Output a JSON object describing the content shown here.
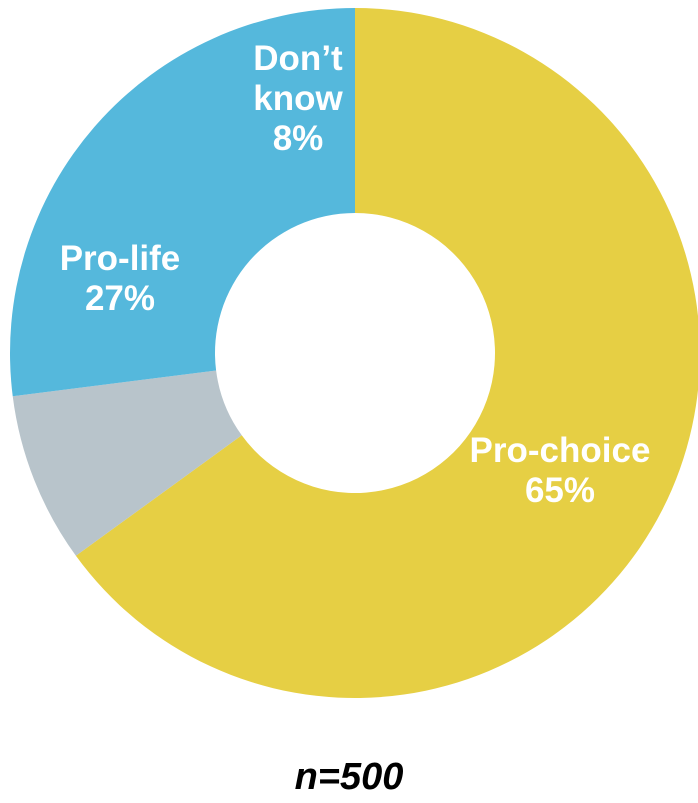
{
  "chart_data": {
    "type": "pie",
    "donut": true,
    "start_angle_deg": 0,
    "direction": "clockwise",
    "slices": [
      {
        "label": "Pro-choice",
        "value": 65,
        "display": "65%",
        "color": "#E6CF44"
      },
      {
        "label": "Don’t know",
        "value": 8,
        "display": "8%",
        "color": "#B8C4CB"
      },
      {
        "label": "Pro-life",
        "value": 27,
        "display": "27%",
        "color": "#55B8DC"
      }
    ],
    "legend": "none",
    "title": ""
  },
  "footnote": "n=500"
}
